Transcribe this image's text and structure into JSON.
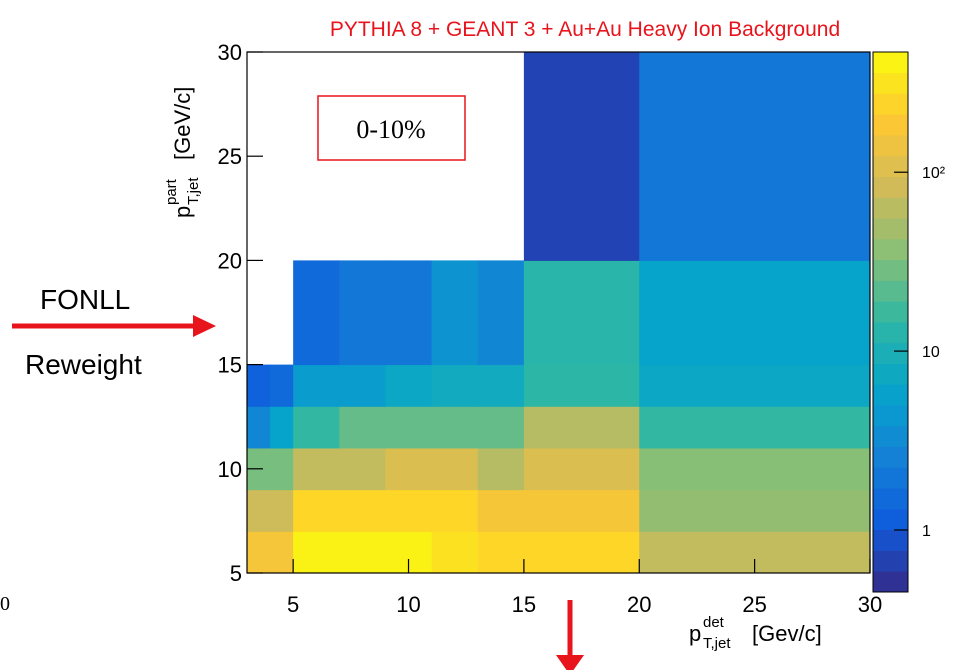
{
  "chart_data": {
    "type": "heatmap",
    "title": "PYTHIA 8 + GEANT 3 + Au+Au Heavy Ion Background",
    "x_label": {
      "base": "p",
      "sup": "det",
      "sub": "T,jet",
      "unit": "[Gev/c]"
    },
    "y_label": {
      "base": "p",
      "sup": "part",
      "sub": "T,jet",
      "unit": "[GeV/c]"
    },
    "x_bins": [
      3,
      4,
      5,
      7,
      9,
      11,
      13,
      15,
      20,
      30
    ],
    "y_bins": [
      5,
      7,
      9,
      11,
      13,
      15,
      20,
      30
    ],
    "z": [
      [
        165,
        165,
        400,
        400,
        400,
        300,
        250,
        250,
        70
      ],
      [
        80,
        80,
        250,
        250,
        250,
        250,
        170,
        170,
        40
      ],
      [
        30,
        30,
        70,
        70,
        100,
        100,
        60,
        100,
        35
      ],
      [
        3,
        6,
        15,
        25,
        25,
        25,
        25,
        60,
        15
      ],
      [
        1.2,
        1.5,
        5,
        5,
        7,
        8,
        8,
        14,
        7
      ],
      [
        null,
        null,
        1.5,
        2,
        2,
        4,
        3,
        13,
        6
      ],
      [
        null,
        null,
        null,
        null,
        null,
        null,
        null,
        0.7,
        2
      ]
    ],
    "xlim": [
      3,
      30
    ],
    "ylim": [
      5,
      30
    ],
    "xticks": [
      5,
      10,
      15,
      20,
      25,
      30
    ],
    "yticks": [
      5,
      10,
      15,
      20,
      25,
      30
    ],
    "zlim": [
      0.45,
      470
    ],
    "zlog": true,
    "zticks": [
      1,
      10,
      {
        "value": 100,
        "label": "10²"
      }
    ],
    "colormap": [
      "#352a87",
      "#0f5cdd",
      "#1481d6",
      "#06a4ca",
      "#2eb7a4",
      "#87bf77",
      "#d1bb59",
      "#fec832",
      "#f9fb0e"
    ],
    "annotations": {
      "box": "0-10%",
      "fonll": "FONLL",
      "reweight": "Reweight",
      "stray": "0"
    }
  }
}
